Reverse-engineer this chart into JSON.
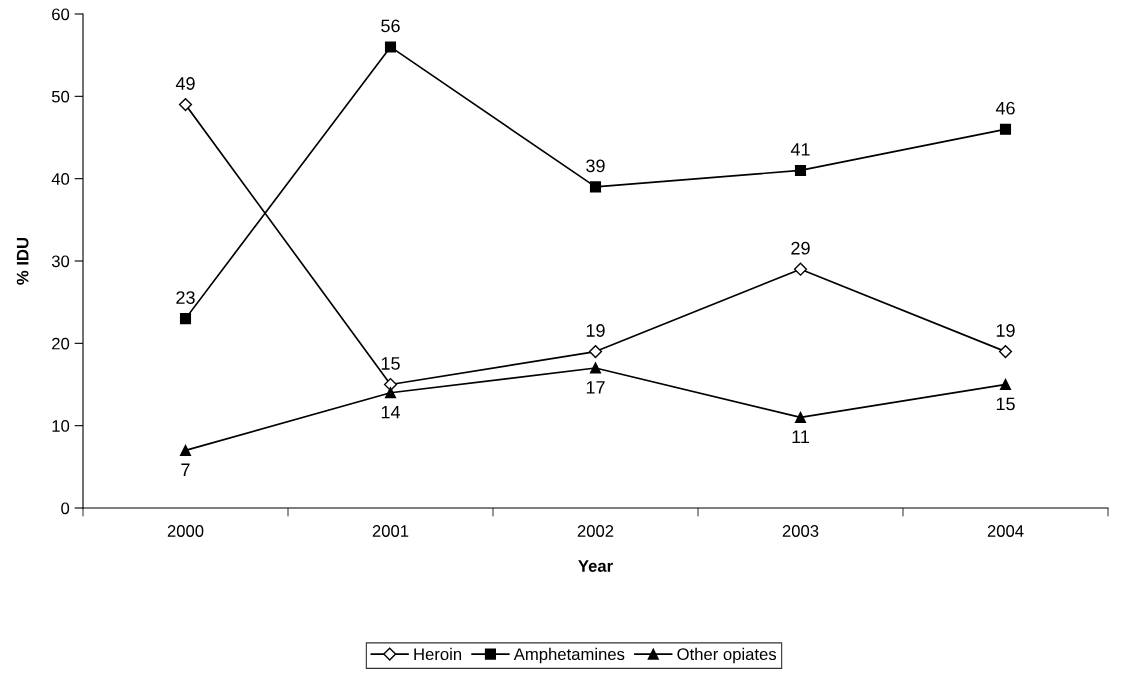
{
  "chart_data": {
    "type": "line",
    "xlabel": "Year",
    "ylabel": "% IDU",
    "categories": [
      "2000",
      "2001",
      "2002",
      "2003",
      "2004"
    ],
    "series": [
      {
        "name": "Heroin",
        "color": "#000000",
        "marker": "diamond",
        "values": [
          49,
          15,
          19,
          29,
          19
        ]
      },
      {
        "name": "Amphetamines",
        "color": "#000000",
        "marker": "square",
        "values": [
          23,
          56,
          39,
          41,
          46
        ]
      },
      {
        "name": "Other opiates",
        "color": "#000000",
        "marker": "triangle",
        "values": [
          7,
          14,
          17,
          11,
          15
        ]
      }
    ],
    "ylim": [
      0,
      60
    ],
    "yticks": [
      0,
      10,
      20,
      30,
      40,
      50,
      60
    ],
    "grid": false,
    "legend": "bottom",
    "data_labels": true,
    "line_style": "solid"
  }
}
